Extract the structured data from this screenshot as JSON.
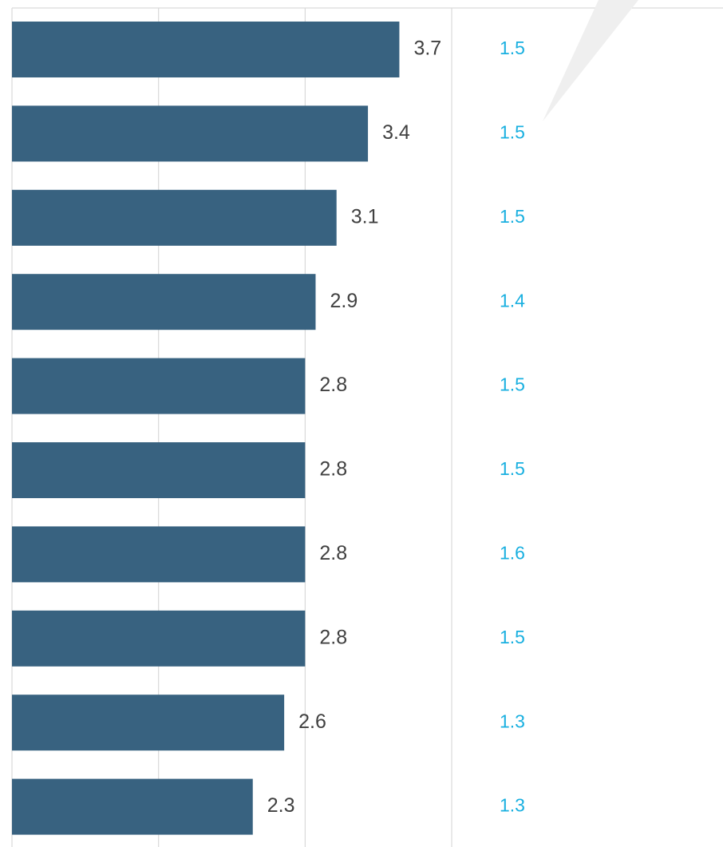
{
  "chart_data": {
    "type": "bar",
    "orientation": "horizontal",
    "categories": [
      "",
      "",
      "",
      "",
      "",
      "",
      "",
      "",
      "",
      ""
    ],
    "series": [
      {
        "values": [
          3.7,
          3.4,
          3.1,
          2.9,
          2.8,
          2.8,
          2.8,
          2.8,
          2.6,
          2.3
        ]
      }
    ],
    "data_labels": [
      "3.7",
      "3.4",
      "3.1",
      "2.9",
      "2.8",
      "2.8",
      "2.8",
      "2.8",
      "2.6",
      "2.3"
    ],
    "secondary_labels": [
      "1.5",
      "1.5",
      "1.5",
      "1.4",
      "1.5",
      "1.5",
      "1.6",
      "1.5",
      "1.3",
      "1.3"
    ],
    "xlim": [
      0,
      4.8
    ],
    "grid": true,
    "title": "",
    "xlabel": "",
    "ylabel": ""
  },
  "colors": {
    "bar": "#386280",
    "value_label": "#404040",
    "secondary_label": "#1ab0e0",
    "gridline": "#d9d9d9",
    "callout": "#efefef"
  }
}
